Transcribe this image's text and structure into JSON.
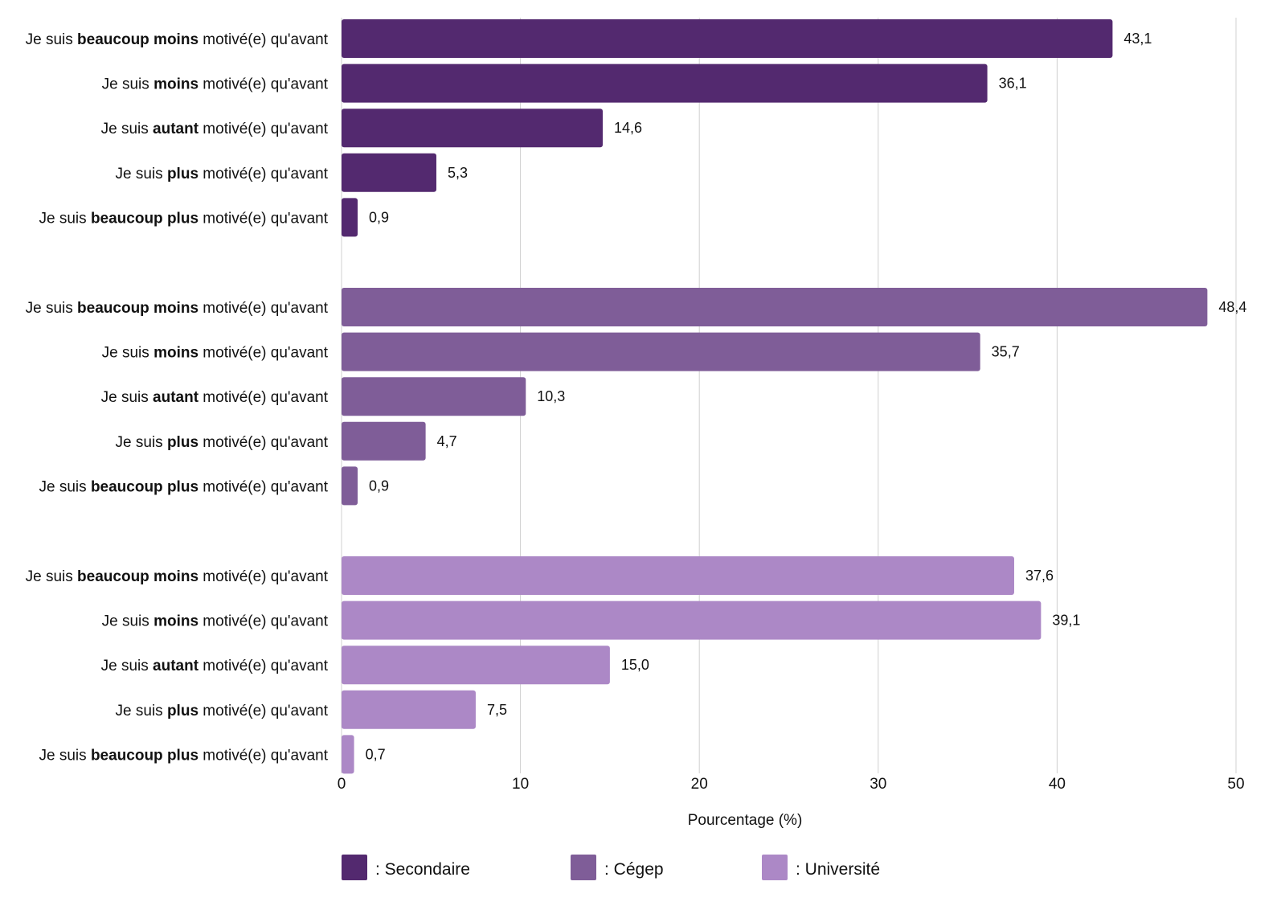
{
  "chart_data": {
    "type": "bar",
    "orientation": "horizontal",
    "title": "",
    "xlabel": "Pourcentage (%)",
    "ylabel": "",
    "xlim": [
      0,
      50
    ],
    "xticks": [
      "0",
      "10",
      "20",
      "30",
      "40",
      "50"
    ],
    "grid": true,
    "legend_position": "bottom",
    "category_parts": [
      [
        "Je suis ",
        "beaucoup moins",
        " motivé(e) qu'avant"
      ],
      [
        "Je suis ",
        "moins",
        " motivé(e) qu'avant"
      ],
      [
        "Je suis ",
        "autant",
        " motivé(e) qu'avant"
      ],
      [
        "Je suis ",
        "plus",
        " motivé(e) qu'avant"
      ],
      [
        "Je suis ",
        "beaucoup plus",
        " motivé(e) qu'avant"
      ]
    ],
    "categories": [
      "Je suis beaucoup moins motivé(e) qu'avant",
      "Je suis moins motivé(e) qu'avant",
      "Je suis autant motivé(e) qu'avant",
      "Je suis plus motivé(e) qu'avant",
      "Je suis beaucoup plus motivé(e) qu'avant"
    ],
    "series": [
      {
        "name": "Secondaire",
        "legend_label": ": Secondaire",
        "color": "#53296f",
        "values": [
          43.1,
          36.1,
          14.6,
          5.3,
          0.9
        ],
        "labels": [
          "43,1",
          "36,1",
          "14,6",
          "5,3",
          "0,9"
        ]
      },
      {
        "name": "Cégep",
        "legend_label": ": Cégep",
        "color": "#7f5d98",
        "values": [
          48.4,
          35.7,
          10.3,
          4.7,
          0.9
        ],
        "labels": [
          "48,4",
          "35,7",
          "10,3",
          "4,7",
          "0,9"
        ]
      },
      {
        "name": "Université",
        "legend_label": ": Université",
        "color": "#ac88c6",
        "values": [
          37.6,
          39.1,
          15.0,
          7.5,
          0.7
        ],
        "labels": [
          "37,6",
          "39,1",
          "15,0",
          "7,5",
          "0,7"
        ]
      }
    ]
  }
}
